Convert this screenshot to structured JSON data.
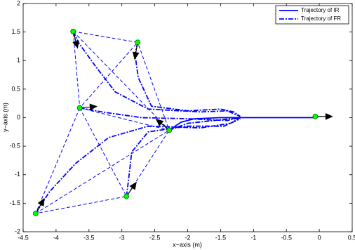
{
  "chart_data": {
    "type": "line",
    "xlabel": "x−axis (m)",
    "ylabel": "y−axis (m)",
    "xlim": [
      -4.5,
      0.5
    ],
    "ylim": [
      -2,
      2
    ],
    "xticks": [
      -4.5,
      -4,
      -3.5,
      -3,
      -2.5,
      -2,
      -1.5,
      -1,
      -0.5,
      0,
      0.5
    ],
    "yticks": [
      -2,
      -1.5,
      -1,
      -0.5,
      0,
      0.5,
      1,
      1.5,
      2
    ],
    "legend": "upper right",
    "series": [
      {
        "name": "Trajectory of IR",
        "color": "#0000ff",
        "style": "solid",
        "x": [
          -2.28,
          -2.1,
          -1.9,
          -1.5,
          -1.0,
          -0.5,
          -0.06
        ],
        "y": [
          -0.22,
          -0.08,
          -0.02,
          0.0,
          0.0,
          0.0,
          0.0
        ]
      },
      {
        "name": "Trajectory of FR",
        "color": "#0000ff",
        "style": "dashdot",
        "x": [
          -3.74,
          -3.65,
          -3.4,
          -3.1,
          -2.6,
          -1.8,
          -1.4,
          -1.2,
          null,
          -2.76,
          -2.8,
          -2.75,
          -2.55,
          -2.0,
          -1.5,
          -1.3,
          -1.2,
          null,
          -3.64,
          -3.3,
          -2.7,
          -2.0,
          -1.4,
          -1.2,
          null,
          -2.28,
          -2.0,
          -1.6,
          -1.2,
          null,
          -2.93,
          -2.9,
          -2.85,
          -2.6,
          -2.0,
          -1.45,
          -1.2,
          null,
          -4.31,
          -4.1,
          -3.7,
          -3.2,
          -2.6,
          -1.8,
          -1.35,
          -1.2
        ],
        "y": [
          1.51,
          1.3,
          0.9,
          0.45,
          0.15,
          0.1,
          0.12,
          0.02,
          null,
          1.32,
          1.1,
          0.7,
          0.2,
          0.12,
          0.15,
          0.1,
          0.02,
          null,
          0.17,
          0.1,
          0.0,
          -0.02,
          -0.05,
          0.0,
          null,
          -0.22,
          -0.1,
          -0.05,
          0.0,
          null,
          -1.38,
          -1.1,
          -0.6,
          -0.25,
          -0.15,
          -0.15,
          -0.02,
          null,
          -1.68,
          -1.3,
          -0.8,
          -0.35,
          -0.15,
          -0.18,
          -0.1,
          0.0
        ]
      }
    ],
    "formation_links": {
      "color": "#0000ff",
      "style": "dashed",
      "x": [
        -3.74,
        -2.76,
        -3.64,
        -3.74,
        null,
        -3.74,
        -2.28,
        -2.76,
        null,
        -3.64,
        -2.28,
        null,
        -3.64,
        -2.93,
        -2.28,
        null,
        -3.64,
        -4.31,
        -2.93,
        null,
        -4.31,
        -2.28
      ],
      "y": [
        1.51,
        1.32,
        0.17,
        1.51,
        null,
        1.51,
        -0.22,
        1.32,
        null,
        0.17,
        -0.22,
        null,
        0.17,
        -1.38,
        -0.22,
        null,
        0.17,
        -1.68,
        -1.38,
        null,
        -1.68,
        -0.22
      ]
    },
    "robots": {
      "color": "#00ff00",
      "x": [
        -3.74,
        -2.76,
        -3.64,
        -2.28,
        -2.93,
        -4.31,
        -0.06
      ],
      "y": [
        1.51,
        1.32,
        0.17,
        -0.22,
        -1.38,
        -1.68,
        0.02
      ],
      "heading": [
        -75,
        -100,
        5,
        140,
        55,
        60,
        0
      ]
    }
  }
}
